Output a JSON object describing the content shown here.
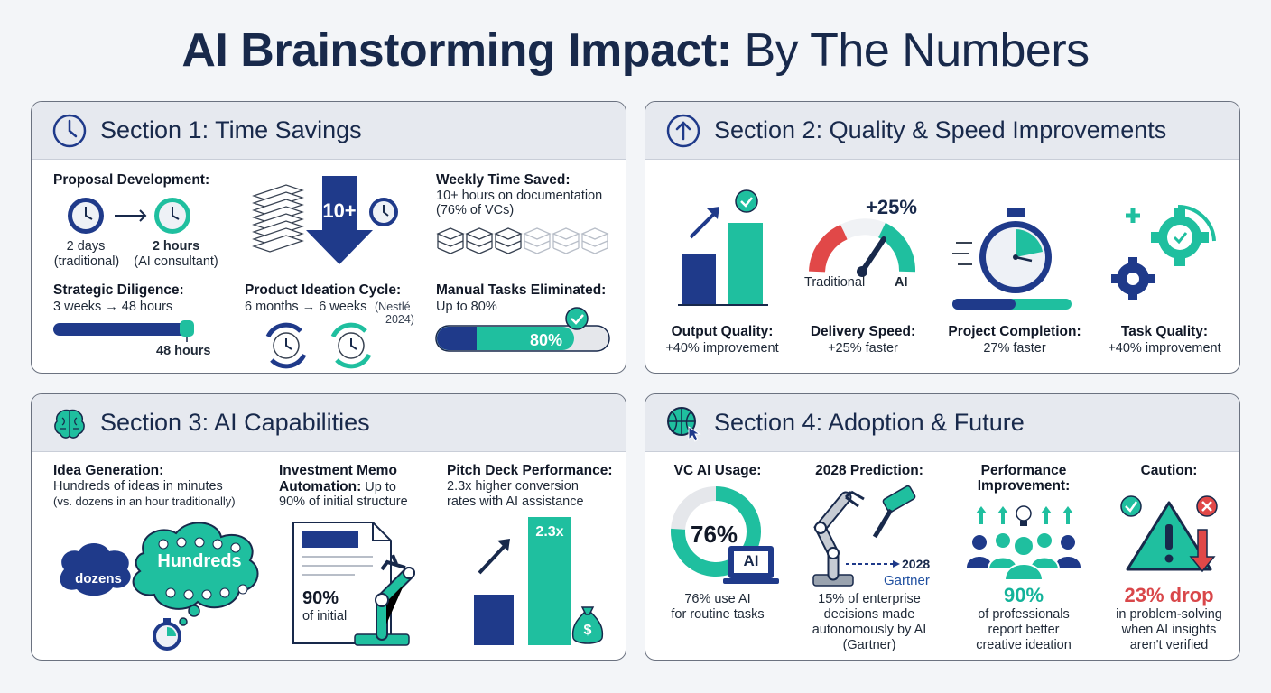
{
  "title": {
    "bold": "AI Brainstorming Impact:",
    "light": " By The Numbers"
  },
  "colors": {
    "navy": "#1f3a8a",
    "teal": "#1fbf9f",
    "dark": "#18294b",
    "red": "#d9474a"
  },
  "s1": {
    "title": "Section 1: Time Savings",
    "icon": "clock-icon",
    "proposal": {
      "label": "Proposal Development:",
      "from": "2 days",
      "from_note": "(traditional)",
      "to": "2 hours",
      "to_note": "(AI consultant)"
    },
    "arrow_badge": "10+",
    "weekly": {
      "label": "Weekly Time Saved:",
      "line1": "10+ hours on documentation",
      "line2": "(76% of VCs)"
    },
    "diligence": {
      "label": "Strategic Diligence:",
      "text": "3 weeks → 48 hours",
      "bar_label": "48 hours"
    },
    "ideation": {
      "label": "Product Ideation Cycle:",
      "text": "6 months → 6 weeks",
      "note1": "(Nestlé",
      "note2": "2024)"
    },
    "manual": {
      "label": "Manual Tasks Eliminated:",
      "text": "Up to 80%",
      "bar_value": "80%",
      "fraction": 0.8
    }
  },
  "s2": {
    "title": "Section 2: Quality & Speed Improvements",
    "icon": "arrow-up-circle-icon",
    "gauge_value": "+25%",
    "gauge_left": "Traditional",
    "gauge_right": "AI",
    "items": [
      {
        "label": "Output Quality:",
        "text": "+40% improvement"
      },
      {
        "label": "Delivery Speed:",
        "text": "+25% faster"
      },
      {
        "label": "Project Completion:",
        "text": "27% faster"
      },
      {
        "label": "Task Quality:",
        "text": "+40% improvement"
      }
    ]
  },
  "s3": {
    "title": "Section 3: AI Capabilities",
    "icon": "brain-icon",
    "idea": {
      "label": "Idea Generation:",
      "line1": "Hundreds of ideas in minutes",
      "line2": "(vs. dozens in an hour traditionally)",
      "small": "dozens",
      "big": "Hundreds"
    },
    "memo": {
      "label1": "Investment Memo",
      "label2": "Automation:",
      "inline": " Up to",
      "line2": "90% of initial structure",
      "pct": "90%",
      "pct_note": "of initial"
    },
    "pitch": {
      "label": "Pitch Deck Performance:",
      "line1": "2.3x higher conversion",
      "line2": "rates with AI assistance",
      "bar_value": "2.3x"
    }
  },
  "s4": {
    "title": "Section 4: Adoption & Future",
    "icon": "globe-cursor-icon",
    "vc": {
      "label": "VC AI Usage:",
      "pct": "76%",
      "badge": "AI",
      "line1": "76% use AI",
      "line2": "for routine tasks",
      "fraction": 0.76
    },
    "pred": {
      "label": "2028 Prediction:",
      "year": "2028",
      "source": "Gartner",
      "line1": "15% of enterprise",
      "line2": "decisions made",
      "line3": "autonomously by AI",
      "line4": "(Gartner)"
    },
    "perf": {
      "label1": "Performance",
      "label2": "Improvement:",
      "pct": "90%",
      "line1": "of professionals",
      "line2": "report better",
      "line3": "creative ideation"
    },
    "caution": {
      "label": "Caution:",
      "pct": "23% drop",
      "line1": "in problem-solving",
      "line2": "when AI insights",
      "line3": "aren't verified"
    }
  }
}
